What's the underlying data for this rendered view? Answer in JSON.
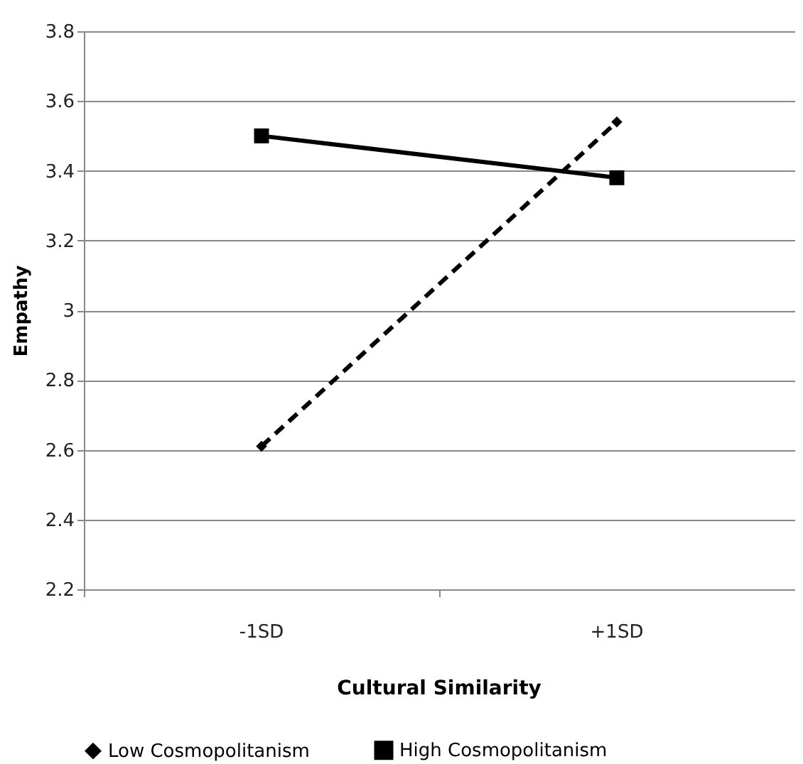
{
  "chart_data": {
    "type": "line",
    "xlabel": "Cultural Similarity",
    "ylabel": "Empathy",
    "categories": [
      "-1SD",
      "+1SD"
    ],
    "series": [
      {
        "name": "Low Cosmopolitanism",
        "color": "#000000",
        "values": [
          2.61,
          3.54
        ],
        "marker": "diamond",
        "line_style": "dashed"
      },
      {
        "name": "High Cosmopolitanism",
        "color": "#000000",
        "values": [
          3.5,
          3.38
        ],
        "marker": "square",
        "line_style": "solid"
      }
    ],
    "ylim": [
      2.2,
      3.8
    ],
    "yticks": [
      2.2,
      2.4,
      2.6,
      2.8,
      {
        "value": 3,
        "label": "3"
      },
      3.2,
      3.4,
      3.6,
      3.8
    ],
    "grid": "y",
    "legend": "bottom"
  }
}
